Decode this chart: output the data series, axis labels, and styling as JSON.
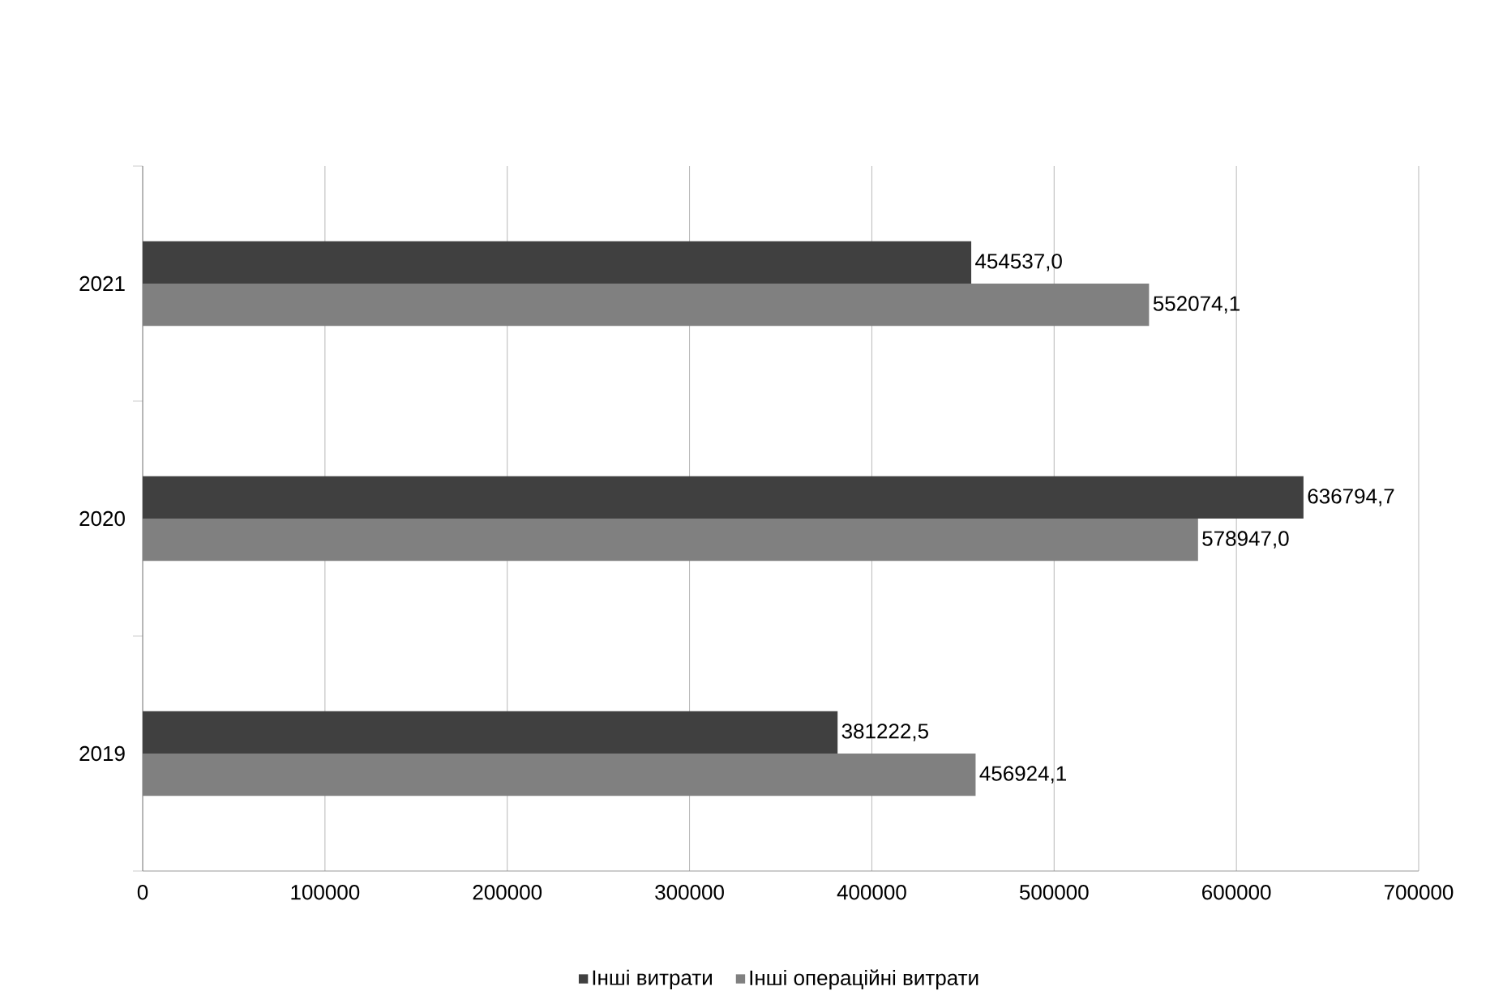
{
  "chart_data": {
    "type": "bar",
    "orientation": "horizontal",
    "categories": [
      "2021",
      "2020",
      "2019"
    ],
    "series": [
      {
        "name": "Інші витрати",
        "color": "#404040",
        "values": [
          454537.0,
          636794.7,
          381222.5
        ],
        "value_labels": [
          "454537,0",
          "636794,7",
          "381222,5"
        ]
      },
      {
        "name": "Інші операційні витрати",
        "color": "#808080",
        "values": [
          552074.1,
          578947.0,
          456924.1
        ],
        "value_labels": [
          "552074,1",
          "578947,0",
          "456924,1"
        ]
      }
    ],
    "xlim": [
      0,
      700000
    ],
    "xticks": [
      0,
      100000,
      200000,
      300000,
      400000,
      500000,
      600000,
      700000
    ],
    "grid": "x",
    "legend": "bottom"
  }
}
